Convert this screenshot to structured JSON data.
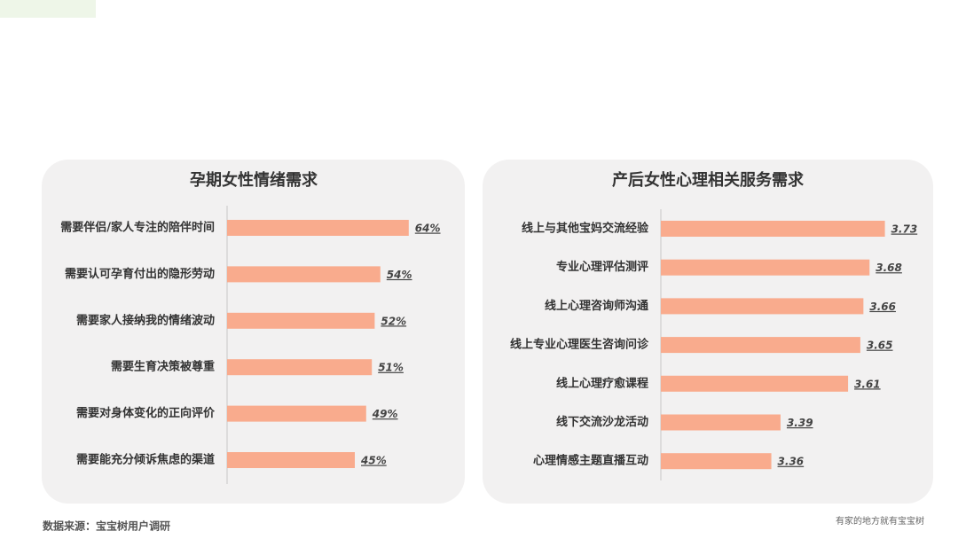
{
  "chart_data": [
    {
      "type": "barh",
      "title": "孕期女性情绪需求",
      "categories": [
        "需要伴侣/家人专注的陪伴时间",
        "需要认可孕育付出的隐形劳动",
        "需要家人接纳我的情绪波动",
        "需要生育决策被尊重",
        "需要对身体变化的正向评价",
        "需要能充分倾诉焦虑的渠道"
      ],
      "values": [
        64,
        54,
        52,
        51,
        49,
        45
      ],
      "value_labels": [
        "64%",
        "54%",
        "52%",
        "51%",
        "49%",
        "45%"
      ],
      "color": "#f9ab8d",
      "xlim": [
        0,
        100
      ]
    },
    {
      "type": "barh",
      "title": "产后女性心理相关服务需求",
      "categories": [
        "线上与其他宝妈交流经验",
        "专业心理评估测评",
        "线上心理咨询师沟通",
        "线上专业心理医生咨询问诊",
        "线上心理疗愈课程",
        "线下交流沙龙活动",
        "心理情感主题直播互动"
      ],
      "values": [
        3.73,
        3.68,
        3.66,
        3.65,
        3.61,
        3.39,
        3.36
      ],
      "color": "#f9ab8d",
      "xlim": [
        3,
        4
      ]
    }
  ],
  "source": "数据来源：宝宝树用户调研",
  "slogan": "有家的地方就有宝宝树"
}
